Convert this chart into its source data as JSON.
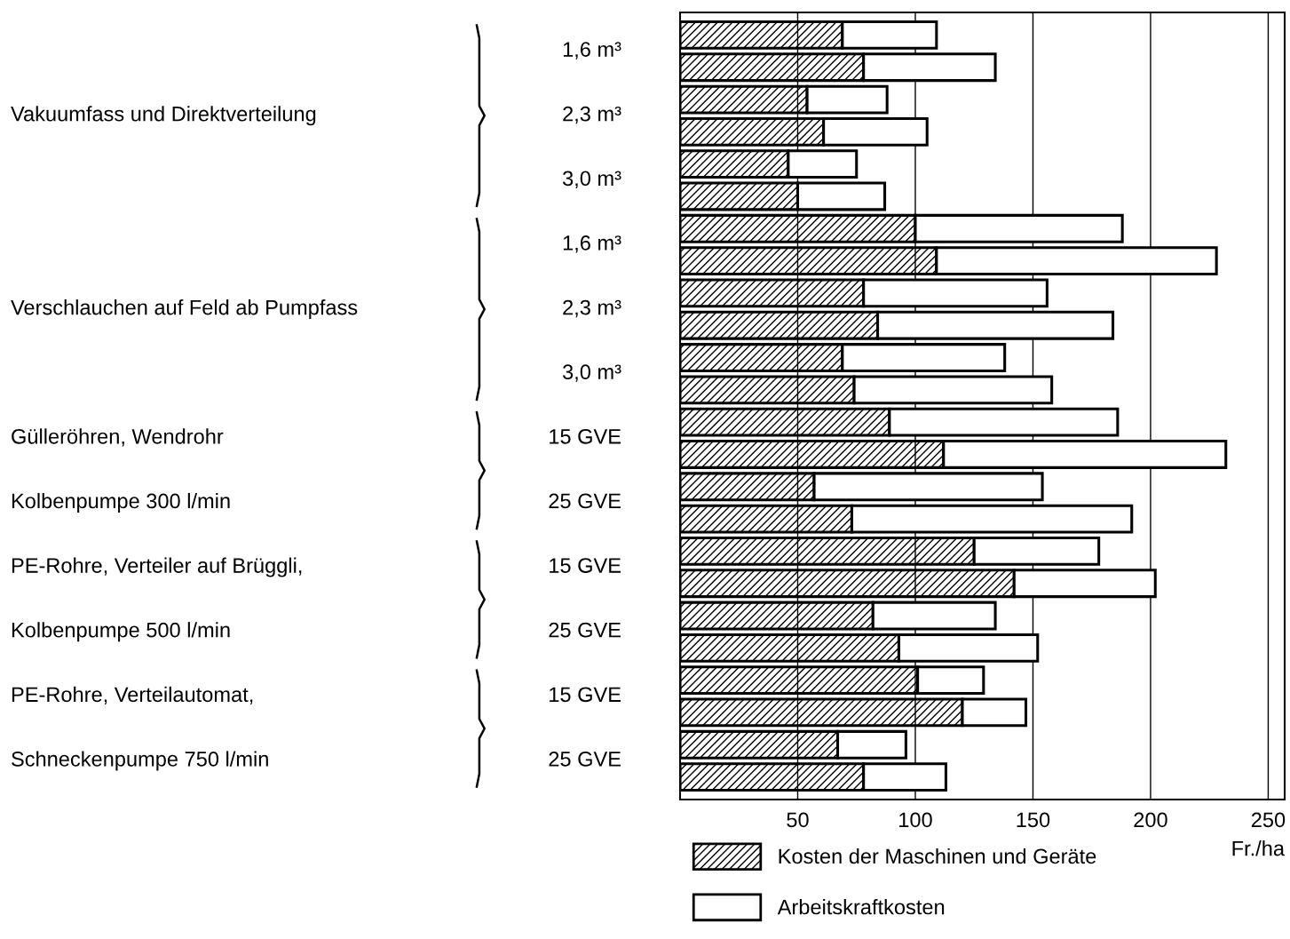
{
  "chart_data": {
    "type": "bar",
    "orientation": "horizontal",
    "stacked": true,
    "categories": [
      "1,6 m³",
      null,
      "2,3 m³",
      null,
      "3,0 m³",
      null,
      "1,6 m³",
      null,
      "2,3 m³",
      null,
      "3,0 m³",
      null,
      "15 GVE",
      null,
      "25 GVE",
      null,
      "15 GVE",
      null,
      "25 GVE",
      null,
      "15 GVE",
      null,
      "25 GVE",
      null
    ],
    "series": [
      {
        "name": "Kosten der Maschinen und Geräte",
        "color": "#000000",
        "values": [
          69,
          78,
          54,
          61,
          46,
          50,
          100,
          109,
          78,
          84,
          69,
          74,
          89,
          112,
          57,
          73,
          125,
          142,
          82,
          93,
          101,
          120,
          67,
          78
        ]
      },
      {
        "name": "Arbeitskraftkosten",
        "color": "#ffffff",
        "values": [
          40,
          56,
          34,
          44,
          29,
          37,
          88,
          119,
          78,
          100,
          69,
          84,
          97,
          120,
          97,
          119,
          53,
          60,
          52,
          59,
          28,
          27,
          29,
          35
        ]
      }
    ],
    "xlim": [
      0,
      257
    ],
    "xticks": [
      50,
      100,
      150,
      200,
      250
    ],
    "xlabel": "Fr./ha",
    "grid": "x",
    "legend": "bottom",
    "annotations": [
      "Vakuumfass und Direktverteilung",
      "Verschlauchen auf Feld ab Pumpfass",
      "Gülleröhren, Wendrohr",
      "Kolbenpumpe 300 l/min",
      "PE-Rohre, Verteiler auf Brüggli,",
      "Kolbenpumpe 500 l/min",
      "PE-Rohre, Verteilautomat,",
      "Schneckenpumpe 750 l/min"
    ]
  }
}
